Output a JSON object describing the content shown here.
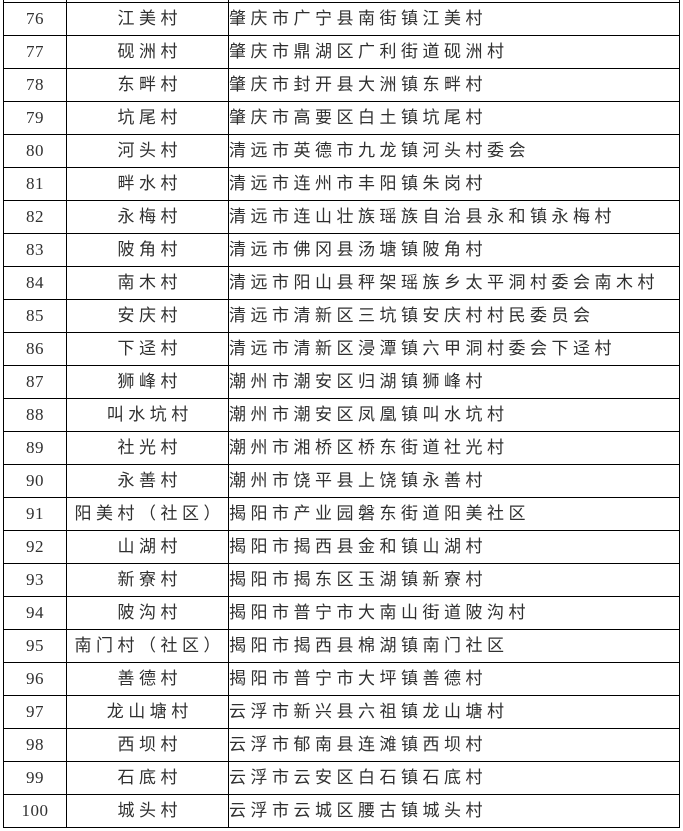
{
  "table": {
    "rows": [
      {
        "num": "76",
        "name": "江美村",
        "address": "肇庆市广宁县南街镇江美村"
      },
      {
        "num": "77",
        "name": "砚洲村",
        "address": "肇庆市鼎湖区广利街道砚洲村"
      },
      {
        "num": "78",
        "name": "东畔村",
        "address": "肇庆市封开县大洲镇东畔村"
      },
      {
        "num": "79",
        "name": "坑尾村",
        "address": "肇庆市高要区白土镇坑尾村"
      },
      {
        "num": "80",
        "name": "河头村",
        "address": "清远市英德市九龙镇河头村委会"
      },
      {
        "num": "81",
        "name": "畔水村",
        "address": "清远市连州市丰阳镇朱岗村"
      },
      {
        "num": "82",
        "name": "永梅村",
        "address": "清远市连山壮族瑶族自治县永和镇永梅村"
      },
      {
        "num": "83",
        "name": "陂角村",
        "address": "清远市佛冈县汤塘镇陂角村"
      },
      {
        "num": "84",
        "name": "南木村",
        "address": "清远市阳山县秤架瑶族乡太平洞村委会南木村"
      },
      {
        "num": "85",
        "name": "安庆村",
        "address": "清远市清新区三坑镇安庆村村民委员会"
      },
      {
        "num": "86",
        "name": "下迳村",
        "address": "清远市清新区浸潭镇六甲洞村委会下迳村"
      },
      {
        "num": "87",
        "name": "狮峰村",
        "address": "潮州市潮安区归湖镇狮峰村"
      },
      {
        "num": "88",
        "name": "叫水坑村",
        "address": "潮州市潮安区凤凰镇叫水坑村"
      },
      {
        "num": "89",
        "name": "社光村",
        "address": "潮州市湘桥区桥东街道社光村"
      },
      {
        "num": "90",
        "name": "永善村",
        "address": "潮州市饶平县上饶镇永善村"
      },
      {
        "num": "91",
        "name": "阳美村（社区）",
        "address": "揭阳市产业园磐东街道阳美社区"
      },
      {
        "num": "92",
        "name": "山湖村",
        "address": "揭阳市揭西县金和镇山湖村"
      },
      {
        "num": "93",
        "name": "新寮村",
        "address": "揭阳市揭东区玉湖镇新寮村"
      },
      {
        "num": "94",
        "name": "陂沟村",
        "address": "揭阳市普宁市大南山街道陂沟村"
      },
      {
        "num": "95",
        "name": "南门村（社区）",
        "address": "揭阳市揭西县棉湖镇南门社区"
      },
      {
        "num": "96",
        "name": "善德村",
        "address": "揭阳市普宁市大坪镇善德村"
      },
      {
        "num": "97",
        "name": "龙山塘村",
        "address": "云浮市新兴县六祖镇龙山塘村"
      },
      {
        "num": "98",
        "name": "西坝村",
        "address": "云浮市郁南县连滩镇西坝村"
      },
      {
        "num": "99",
        "name": "石底村",
        "address": "云浮市云安区白石镇石底村"
      },
      {
        "num": "100",
        "name": "城头村",
        "address": "云浮市云城区腰古镇城头村"
      }
    ],
    "colors": {
      "border": "#000000",
      "text": "#303030",
      "background": "#ffffff"
    }
  }
}
